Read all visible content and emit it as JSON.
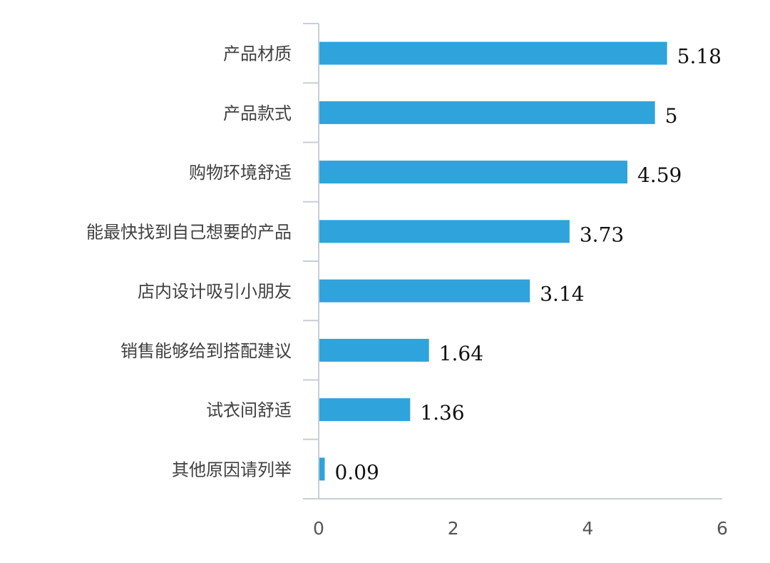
{
  "chart_data": {
    "type": "bar",
    "orientation": "horizontal",
    "title": "",
    "xlabel": "",
    "ylabel": "",
    "categories": [
      "产品材质",
      "产品款式",
      "购物环境舒适",
      "能最快找到自己想要的产品",
      "店内设计吸引小朋友",
      "销售能够给到搭配建议",
      "试衣间舒适",
      "其他原因请列举"
    ],
    "values": [
      5.18,
      5,
      4.59,
      3.73,
      3.14,
      1.64,
      1.36,
      0.09
    ],
    "value_labels": [
      "5.18",
      "5",
      "4.59",
      "3.73",
      "3.14",
      "1.64",
      "1.36",
      "0.09"
    ],
    "xlim": [
      0,
      6
    ],
    "xticks": [
      0,
      2,
      4,
      6
    ],
    "xtick_labels": [
      "0",
      "2",
      "4",
      "6"
    ],
    "grid": false,
    "legend": "none",
    "colors": {
      "bar": "#2fa3dc",
      "axis": "#c8ced6"
    }
  }
}
